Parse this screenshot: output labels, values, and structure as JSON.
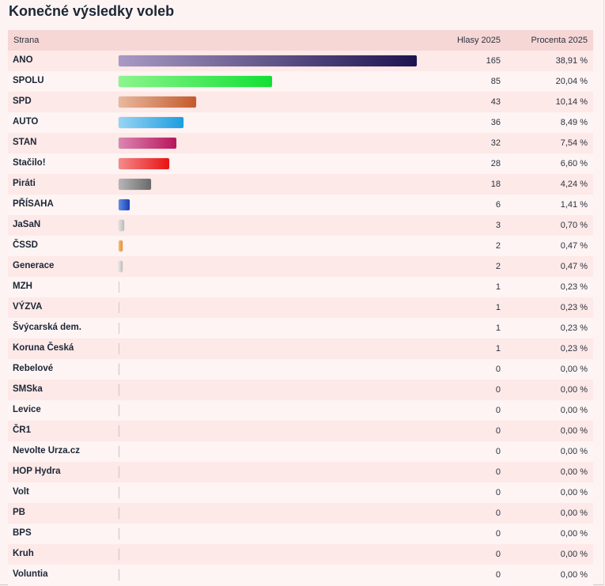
{
  "title": "Konečné výsledky voleb",
  "columns": {
    "party": "Strana",
    "votes": "Hlasy 2025",
    "percent": "Procenta 2025"
  },
  "chart_data": {
    "type": "bar",
    "title": "Konečné výsledky voleb",
    "xlim": [
      0,
      175
    ],
    "rows": [
      {
        "party": "ANO",
        "votes": 165,
        "percent": "38,91 %",
        "color_from": "#a89ac4",
        "color_to": "#1d1350"
      },
      {
        "party": "SPOLU",
        "votes": 85,
        "percent": "20,04 %",
        "color_from": "#8cf58e",
        "color_to": "#12e033"
      },
      {
        "party": "SPD",
        "votes": 43,
        "percent": "10,14 %",
        "color_from": "#e9b89e",
        "color_to": "#c45a2b"
      },
      {
        "party": "AUTO",
        "votes": 36,
        "percent": "8,49 %",
        "color_from": "#97d4f4",
        "color_to": "#1d9ddf"
      },
      {
        "party": "STAN",
        "votes": 32,
        "percent": "7,54 %",
        "color_from": "#dc86b2",
        "color_to": "#b7155c"
      },
      {
        "party": "Stačilo!",
        "votes": 28,
        "percent": "6,60 %",
        "color_from": "#f58a8a",
        "color_to": "#e81212"
      },
      {
        "party": "Piráti",
        "votes": 18,
        "percent": "4,24 %",
        "color_from": "#b6b6b6",
        "color_to": "#6a6a6a"
      },
      {
        "party": "PŘÍSAHA",
        "votes": 6,
        "percent": "1,41 %",
        "color_from": "#5f8de6",
        "color_to": "#1a3fb4"
      },
      {
        "party": "JaSaN",
        "votes": 3,
        "percent": "0,70 %",
        "color_from": "#e2e2e2",
        "color_to": "#b9b9b9"
      },
      {
        "party": "ČSSD",
        "votes": 2,
        "percent": "0,47 %",
        "color_from": "#f7c27a",
        "color_to": "#ec8a2b"
      },
      {
        "party": "Generace",
        "votes": 2,
        "percent": "0,47 %",
        "color_from": "#e5e5e5",
        "color_to": "#bdbdbd"
      },
      {
        "party": "MZH",
        "votes": 1,
        "percent": "0,23 %",
        "color_from": "#dcdcdc",
        "color_to": "#c4c4c4"
      },
      {
        "party": "VÝZVA",
        "votes": 1,
        "percent": "0,23 %",
        "color_from": "#dcdcdc",
        "color_to": "#c4c4c4"
      },
      {
        "party": "Švýcarská dem.",
        "votes": 1,
        "percent": "0,23 %",
        "color_from": "#dcdcdc",
        "color_to": "#c4c4c4"
      },
      {
        "party": "Koruna Česká",
        "votes": 1,
        "percent": "0,23 %",
        "color_from": "#dcdcdc",
        "color_to": "#c4c4c4"
      },
      {
        "party": "Rebelové",
        "votes": 0,
        "percent": "0,00 %",
        "color_from": "#d8d2d2",
        "color_to": "#d8d2d2"
      },
      {
        "party": "SMSka",
        "votes": 0,
        "percent": "0,00 %",
        "color_from": "#d8d2d2",
        "color_to": "#d8d2d2"
      },
      {
        "party": "Levice",
        "votes": 0,
        "percent": "0,00 %",
        "color_from": "#d8d2d2",
        "color_to": "#d8d2d2"
      },
      {
        "party": "ČR1",
        "votes": 0,
        "percent": "0,00 %",
        "color_from": "#d8d2d2",
        "color_to": "#d8d2d2"
      },
      {
        "party": "Nevolte Urza.cz",
        "votes": 0,
        "percent": "0,00 %",
        "color_from": "#d8d2d2",
        "color_to": "#d8d2d2"
      },
      {
        "party": "HOP Hydra",
        "votes": 0,
        "percent": "0,00 %",
        "color_from": "#d8d2d2",
        "color_to": "#d8d2d2"
      },
      {
        "party": "Volt",
        "votes": 0,
        "percent": "0,00 %",
        "color_from": "#d8d2d2",
        "color_to": "#d8d2d2"
      },
      {
        "party": "PB",
        "votes": 0,
        "percent": "0,00 %",
        "color_from": "#d8d2d2",
        "color_to": "#d8d2d2"
      },
      {
        "party": "BPS",
        "votes": 0,
        "percent": "0,00 %",
        "color_from": "#d8d2d2",
        "color_to": "#d8d2d2"
      },
      {
        "party": "Kruh",
        "votes": 0,
        "percent": "0,00 %",
        "color_from": "#d8d2d2",
        "color_to": "#d8d2d2"
      },
      {
        "party": "Voluntia",
        "votes": 0,
        "percent": "0,00 %",
        "color_from": "#d8d2d2",
        "color_to": "#d8d2d2"
      }
    ]
  }
}
